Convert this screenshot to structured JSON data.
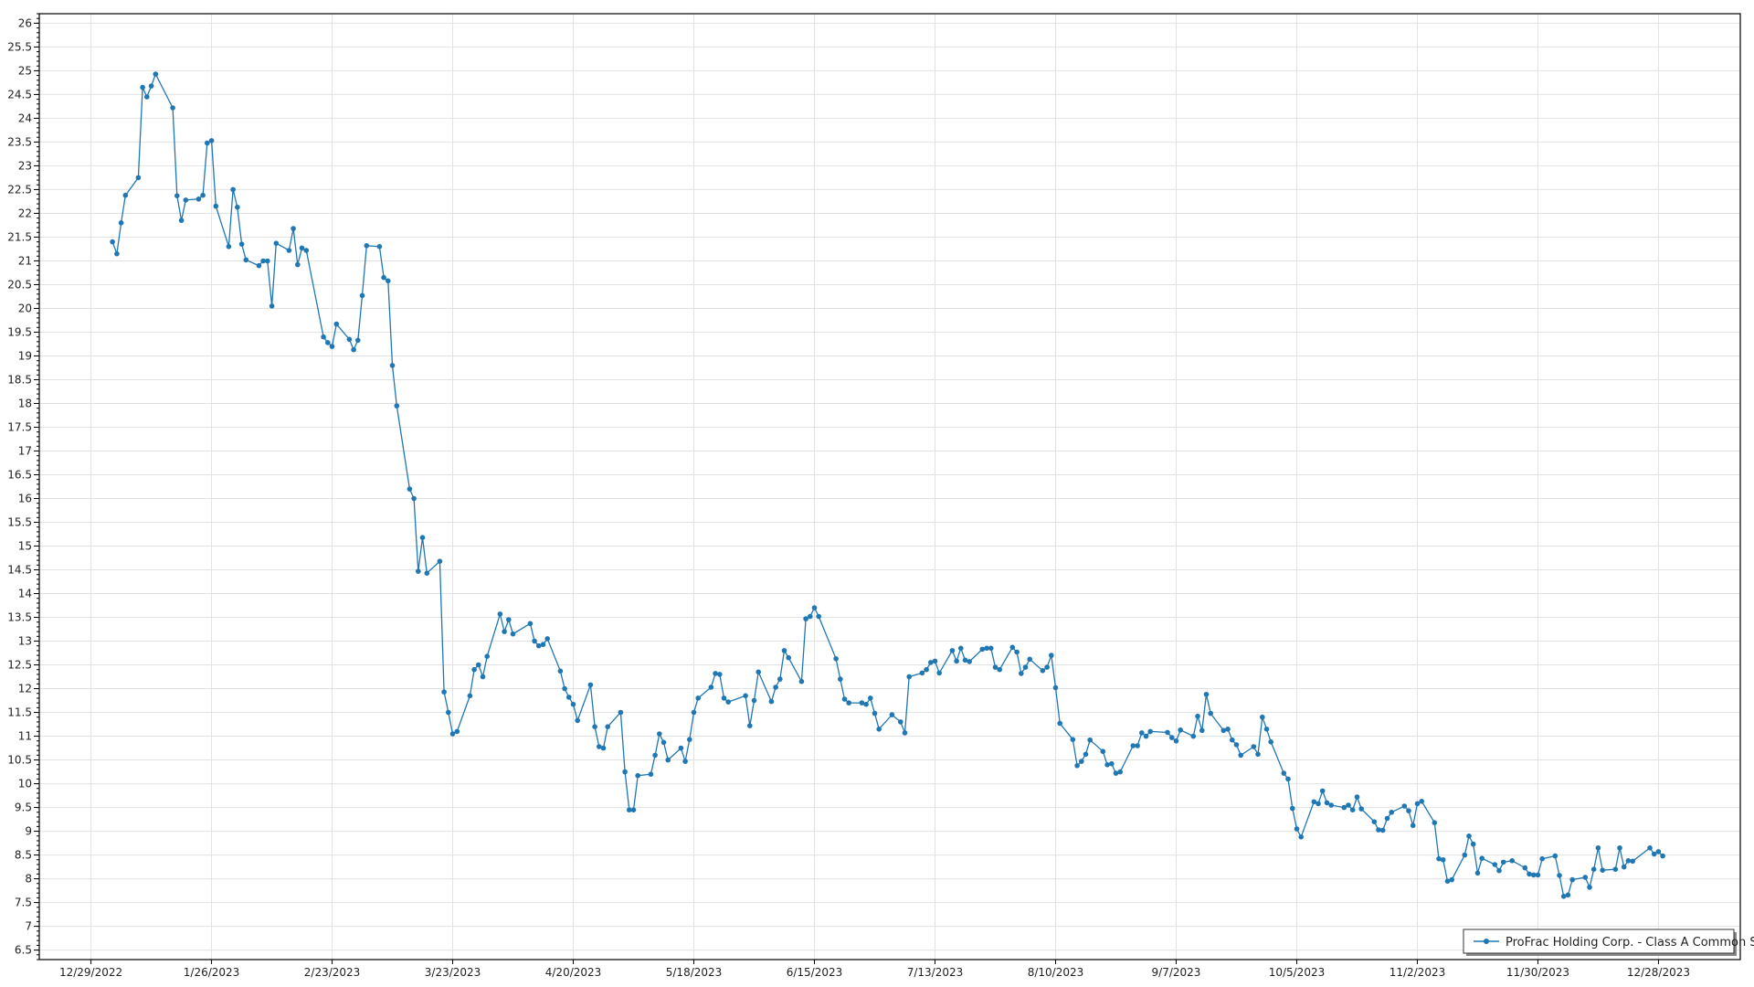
{
  "chart_data": {
    "type": "line",
    "title": "",
    "xlabel": "",
    "ylabel": "",
    "xlim": [
      "12/17/2022",
      "1/16/2024"
    ],
    "ylim": [
      6.3,
      26.2
    ],
    "y_ticks": [
      "6.5",
      "7",
      "7.5",
      "8",
      "8.5",
      "9",
      "9.5",
      "10",
      "10.5",
      "11",
      "11.5",
      "12",
      "12.5",
      "13",
      "13.5",
      "14",
      "14.5",
      "15",
      "15.5",
      "16",
      "16.5",
      "17",
      "17.5",
      "18",
      "18.5",
      "19",
      "19.5",
      "20",
      "20.5",
      "21",
      "21.5",
      "22",
      "22.5",
      "23",
      "23.5",
      "24",
      "24.5",
      "25",
      "25.5",
      "26"
    ],
    "x_ticks": [
      "12/29/2022",
      "1/26/2023",
      "2/23/2023",
      "3/23/2023",
      "4/20/2023",
      "5/18/2023",
      "6/15/2023",
      "7/13/2023",
      "8/10/2023",
      "9/7/2023",
      "10/5/2023",
      "11/2/2023",
      "11/30/2023",
      "12/28/2023"
    ],
    "grid": true,
    "legend_position": "bottom-right",
    "series": [
      {
        "name": "ProFrac Holding Corp. - Class A Common Stock",
        "color": "#1f77b4",
        "marker": "circle",
        "x": [
          "1/3/2023",
          "1/4/2023",
          "1/5/2023",
          "1/6/2023",
          "1/9/2023",
          "1/10/2023",
          "1/11/2023",
          "1/12/2023",
          "1/13/2023",
          "1/17/2023",
          "1/18/2023",
          "1/19/2023",
          "1/20/2023",
          "1/23/2023",
          "1/24/2023",
          "1/25/2023",
          "1/26/2023",
          "1/27/2023",
          "1/30/2023",
          "1/31/2023",
          "2/1/2023",
          "2/2/2023",
          "2/3/2023",
          "2/6/2023",
          "2/7/2023",
          "2/8/2023",
          "2/9/2023",
          "2/10/2023",
          "2/13/2023",
          "2/14/2023",
          "2/15/2023",
          "2/16/2023",
          "2/17/2023",
          "2/21/2023",
          "2/22/2023",
          "2/23/2023",
          "2/24/2023",
          "2/27/2023",
          "2/28/2023",
          "3/1/2023",
          "3/2/2023",
          "3/3/2023",
          "3/6/2023",
          "3/7/2023",
          "3/8/2023",
          "3/9/2023",
          "3/10/2023",
          "3/13/2023",
          "3/14/2023",
          "3/15/2023",
          "3/16/2023",
          "3/17/2023",
          "3/20/2023",
          "3/21/2023",
          "3/22/2023",
          "3/23/2023",
          "3/24/2023",
          "3/27/2023",
          "3/28/2023",
          "3/29/2023",
          "3/30/2023",
          "3/31/2023",
          "4/3/2023",
          "4/4/2023",
          "4/5/2023",
          "4/6/2023",
          "4/10/2023",
          "4/11/2023",
          "4/12/2023",
          "4/13/2023",
          "4/14/2023",
          "4/17/2023",
          "4/18/2023",
          "4/19/2023",
          "4/20/2023",
          "4/21/2023",
          "4/24/2023",
          "4/25/2023",
          "4/26/2023",
          "4/27/2023",
          "4/28/2023",
          "5/1/2023",
          "5/2/2023",
          "5/3/2023",
          "5/4/2023",
          "5/5/2023",
          "5/8/2023",
          "5/9/2023",
          "5/10/2023",
          "5/11/2023",
          "5/12/2023",
          "5/15/2023",
          "5/16/2023",
          "5/17/2023",
          "5/18/2023",
          "5/19/2023",
          "5/22/2023",
          "5/23/2023",
          "5/24/2023",
          "5/25/2023",
          "5/26/2023",
          "5/30/2023",
          "5/31/2023",
          "6/1/2023",
          "6/2/2023",
          "6/5/2023",
          "6/6/2023",
          "6/7/2023",
          "6/8/2023",
          "6/9/2023",
          "6/12/2023",
          "6/13/2023",
          "6/14/2023",
          "6/15/2023",
          "6/16/2023",
          "6/20/2023",
          "6/21/2023",
          "6/22/2023",
          "6/23/2023",
          "6/26/2023",
          "6/27/2023",
          "6/28/2023",
          "6/29/2023",
          "6/30/2023",
          "7/3/2023",
          "7/5/2023",
          "7/6/2023",
          "7/7/2023",
          "7/10/2023",
          "7/11/2023",
          "7/12/2023",
          "7/13/2023",
          "7/14/2023",
          "7/17/2023",
          "7/18/2023",
          "7/19/2023",
          "7/20/2023",
          "7/21/2023",
          "7/24/2023",
          "7/25/2023",
          "7/26/2023",
          "7/27/2023",
          "7/28/2023",
          "7/31/2023",
          "8/1/2023",
          "8/2/2023",
          "8/3/2023",
          "8/4/2023",
          "8/7/2023",
          "8/8/2023",
          "8/9/2023",
          "8/10/2023",
          "8/11/2023",
          "8/14/2023",
          "8/15/2023",
          "8/16/2023",
          "8/17/2023",
          "8/18/2023",
          "8/21/2023",
          "8/22/2023",
          "8/23/2023",
          "8/24/2023",
          "8/25/2023",
          "8/28/2023",
          "8/29/2023",
          "8/30/2023",
          "8/31/2023",
          "9/1/2023",
          "9/5/2023",
          "9/6/2023",
          "9/7/2023",
          "9/8/2023",
          "9/11/2023",
          "9/12/2023",
          "9/13/2023",
          "9/14/2023",
          "9/15/2023",
          "9/18/2023",
          "9/19/2023",
          "9/20/2023",
          "9/21/2023",
          "9/22/2023",
          "9/25/2023",
          "9/26/2023",
          "9/27/2023",
          "9/28/2023",
          "9/29/2023",
          "10/2/2023",
          "10/3/2023",
          "10/4/2023",
          "10/5/2023",
          "10/6/2023",
          "10/9/2023",
          "10/10/2023",
          "10/11/2023",
          "10/12/2023",
          "10/13/2023",
          "10/16/2023",
          "10/17/2023",
          "10/18/2023",
          "10/19/2023",
          "10/20/2023",
          "10/23/2023",
          "10/24/2023",
          "10/25/2023",
          "10/26/2023",
          "10/27/2023",
          "10/30/2023",
          "10/31/2023",
          "11/1/2023",
          "11/2/2023",
          "11/3/2023",
          "11/6/2023",
          "11/7/2023",
          "11/8/2023",
          "11/9/2023",
          "11/10/2023",
          "11/13/2023",
          "11/14/2023",
          "11/15/2023",
          "11/16/2023",
          "11/17/2023",
          "11/20/2023",
          "11/21/2023",
          "11/22/2023",
          "11/24/2023",
          "11/27/2023",
          "11/28/2023",
          "11/29/2023",
          "11/30/2023",
          "12/1/2023",
          "12/4/2023",
          "12/5/2023",
          "12/6/2023",
          "12/7/2023",
          "12/8/2023",
          "12/11/2023",
          "12/12/2023",
          "12/13/2023",
          "12/14/2023",
          "12/15/2023",
          "12/18/2023",
          "12/19/2023",
          "12/20/2023",
          "12/21/2023",
          "12/22/2023",
          "12/26/2023",
          "12/27/2023",
          "12/28/2023",
          "12/29/2023"
        ],
        "values": [
          21.4,
          21.15,
          21.8,
          22.38,
          22.75,
          24.65,
          24.45,
          24.68,
          24.93,
          24.22,
          22.37,
          21.85,
          22.28,
          22.3,
          22.38,
          23.48,
          23.53,
          22.15,
          21.3,
          22.5,
          22.13,
          21.35,
          21.02,
          20.9,
          21.0,
          21.0,
          20.05,
          21.37,
          21.22,
          21.68,
          20.92,
          21.27,
          21.22,
          19.4,
          19.28,
          19.2,
          19.67,
          19.35,
          19.13,
          19.33,
          20.27,
          21.32,
          21.3,
          20.65,
          20.58,
          18.8,
          17.95,
          16.2,
          16.0,
          14.47,
          15.18,
          14.43,
          14.68,
          11.93,
          11.5,
          11.05,
          11.1,
          11.85,
          12.4,
          12.5,
          12.25,
          12.68,
          13.57,
          13.2,
          13.45,
          13.15,
          13.37,
          13.0,
          12.9,
          12.93,
          13.05,
          12.37,
          12.0,
          11.82,
          11.67,
          11.33,
          12.08,
          11.2,
          10.78,
          10.75,
          11.2,
          11.5,
          10.25,
          9.45,
          9.45,
          10.17,
          10.2,
          10.6,
          11.05,
          10.87,
          10.5,
          10.75,
          10.47,
          10.93,
          11.5,
          11.8,
          12.03,
          12.32,
          12.3,
          11.8,
          11.72,
          11.85,
          11.22,
          11.75,
          12.35,
          11.73,
          12.03,
          12.2,
          12.8,
          12.65,
          12.15,
          13.47,
          13.52,
          13.7,
          13.52,
          12.63,
          12.2,
          11.78,
          11.7,
          11.7,
          11.67,
          11.8,
          11.48,
          11.15,
          11.45,
          11.3,
          11.07,
          12.25,
          12.33,
          12.4,
          12.55,
          12.58,
          12.33,
          12.8,
          12.58,
          12.85,
          12.6,
          12.57,
          12.83,
          12.85,
          12.85,
          12.45,
          12.4,
          12.87,
          12.77,
          12.32,
          12.45,
          12.62,
          12.38,
          12.45,
          12.7,
          12.02,
          11.27,
          10.93,
          10.38,
          10.47,
          10.62,
          10.92,
          10.68,
          10.4,
          10.42,
          10.22,
          10.25,
          10.8,
          10.8,
          11.07,
          11.0,
          11.1,
          11.08,
          10.97,
          10.9,
          11.13,
          11.0,
          11.42,
          11.12,
          11.88,
          11.48,
          11.12,
          11.15,
          10.92,
          10.82,
          10.6,
          10.78,
          10.62,
          11.4,
          11.15,
          10.88,
          10.22,
          10.1,
          9.48,
          9.05,
          8.88,
          9.62,
          9.58,
          9.85,
          9.6,
          9.55,
          9.5,
          9.55,
          9.45,
          9.72,
          9.47,
          9.2,
          9.03,
          9.02,
          9.27,
          9.4,
          9.53,
          9.43,
          9.12,
          9.58,
          9.63,
          9.18,
          8.42,
          8.4,
          7.95,
          7.98,
          8.5,
          8.9,
          8.73,
          8.12,
          8.43,
          8.3,
          8.17,
          8.35,
          8.38,
          8.23,
          8.1,
          8.08,
          8.08,
          8.42,
          8.48,
          8.07,
          7.63,
          7.66,
          7.98,
          8.03,
          7.82,
          8.2,
          8.65,
          8.18,
          8.2,
          8.65,
          8.25,
          8.38,
          8.37,
          8.65,
          8.52,
          8.57,
          8.48
        ]
      }
    ]
  }
}
